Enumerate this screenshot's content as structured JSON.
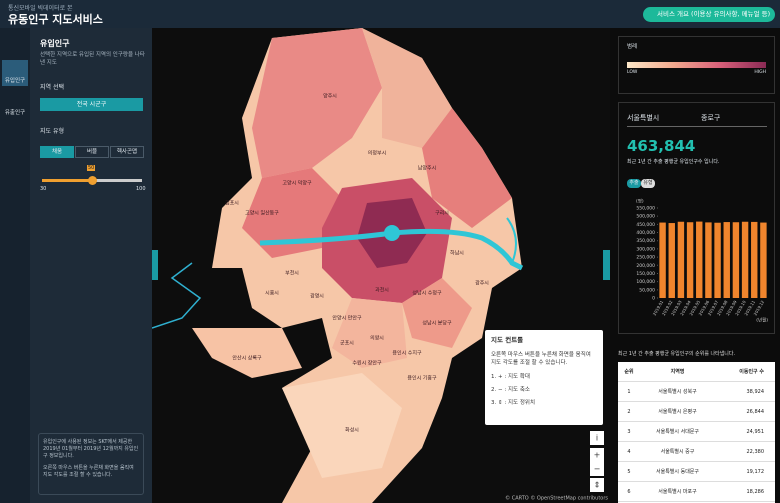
{
  "header": {
    "subtitle": "통신모바일 빅데이터로 본",
    "title": "유동인구 지도서비스",
    "button": "서비스 개요 (이용상 유의사항, 메뉴얼 등)"
  },
  "nav": [
    "유입인구",
    "유출인구"
  ],
  "panel": {
    "title": "유입인구",
    "description": "선택한 지역으로 유입된 지역의 인구량을 나타낸 지도",
    "region_label": "지역 선택",
    "region_button": "전국 시군구",
    "map_type_label": "지도 유형",
    "map_types": [
      "채움",
      "버블",
      "헥사곤맵"
    ],
    "slider": {
      "min": "30",
      "value": "50",
      "max": "100"
    },
    "info": [
      "유입인구에 사용된 정보는 SKT에서 제공한 2019년 01월부터 2019년 12월까지 유입인구 정보입니다.",
      "오른쪽 마우스 버튼을 누른채 화면을 움직여 지도 각도를 조절 할 수 있습니다."
    ]
  },
  "map": {
    "labels": [
      "양주시",
      "의정부시",
      "남양주시",
      "고양시 일산동구",
      "고양시 덕양구",
      "김포시",
      "구리시",
      "하남시",
      "부천시",
      "광명시",
      "시흥시",
      "안양시 만안구",
      "과천시",
      "성남시 수정구",
      "성남시 분당구",
      "의왕시",
      "군포시",
      "안산시 상록구",
      "수원시 장안구",
      "용인시 수지구",
      "용인시 기흥구",
      "화성시",
      "광주시"
    ],
    "tooltip": {
      "title": "지도 컨트롤",
      "text": "오른쪽 마우스 버튼을 누른채 화면을 움직여 지도 각도를 조절 할 수 있습니다.",
      "items": [
        "1. + : 지도 확대",
        "2. − : 지도 축소",
        "3. ⇕ : 지도 정위치"
      ]
    },
    "controls": [
      "i",
      "+",
      "−",
      "⇕"
    ],
    "attribution": "© CARTO © OpenStreetMap contributors"
  },
  "legend": {
    "title": "범례",
    "low": "LOW",
    "high": "HIGH"
  },
  "summary": {
    "city": "서울특별시",
    "district": "종로구",
    "number": "463,844",
    "caption": "최근 1년 간 추출 평행균 유입인구수 입니다.",
    "tabs": [
      "추출",
      "유형"
    ]
  },
  "chart_data": {
    "type": "bar",
    "y_unit": "(명)",
    "x_unit": "(년월)",
    "color": "#f0852d",
    "categories": [
      "2019.01",
      "2019.02",
      "2019.03",
      "2019.04",
      "2019.05",
      "2019.06",
      "2019.07",
      "2019.08",
      "2019.09",
      "2019.10",
      "2019.11",
      "2019.12"
    ],
    "values": [
      461000,
      458000,
      466000,
      463000,
      467000,
      462000,
      460000,
      464000,
      463000,
      466000,
      465000,
      461000
    ],
    "ylim": [
      0,
      550000
    ],
    "yticks": [
      0,
      {
        "value": 50000,
        "label": "50,000"
      },
      {
        "value": 100000,
        "label": "100,000"
      },
      {
        "value": 150000,
        "label": "150,000"
      },
      {
        "value": 200000,
        "label": "200,000"
      },
      {
        "value": 250000,
        "label": "250,000"
      },
      {
        "value": 300000,
        "label": "300,000"
      },
      {
        "value": 350000,
        "label": "350,000"
      },
      {
        "value": 400000,
        "label": "400,000"
      },
      {
        "value": 450000,
        "label": "450,000"
      },
      {
        "value": 500000,
        "label": "500,000"
      },
      {
        "value": 550000,
        "label": "550,000"
      }
    ]
  },
  "table": {
    "caption": "최근 1년 간 추출 평행균 유입인구의 순위를 나타냅니다.",
    "headers": [
      "순위",
      "지역명",
      "이동인구 수"
    ],
    "rows": [
      [
        "1",
        "서울특별시 성북구",
        "38,924"
      ],
      [
        "2",
        "서울특별시 은평구",
        "26,844"
      ],
      [
        "3",
        "서울특별시 서대문구",
        "24,951"
      ],
      [
        "4",
        "서울특별시 중구",
        "22,380"
      ],
      [
        "5",
        "서울특별시 동대문구",
        "19,172"
      ],
      [
        "6",
        "서울특별시 마포구",
        "18,286"
      ]
    ]
  }
}
